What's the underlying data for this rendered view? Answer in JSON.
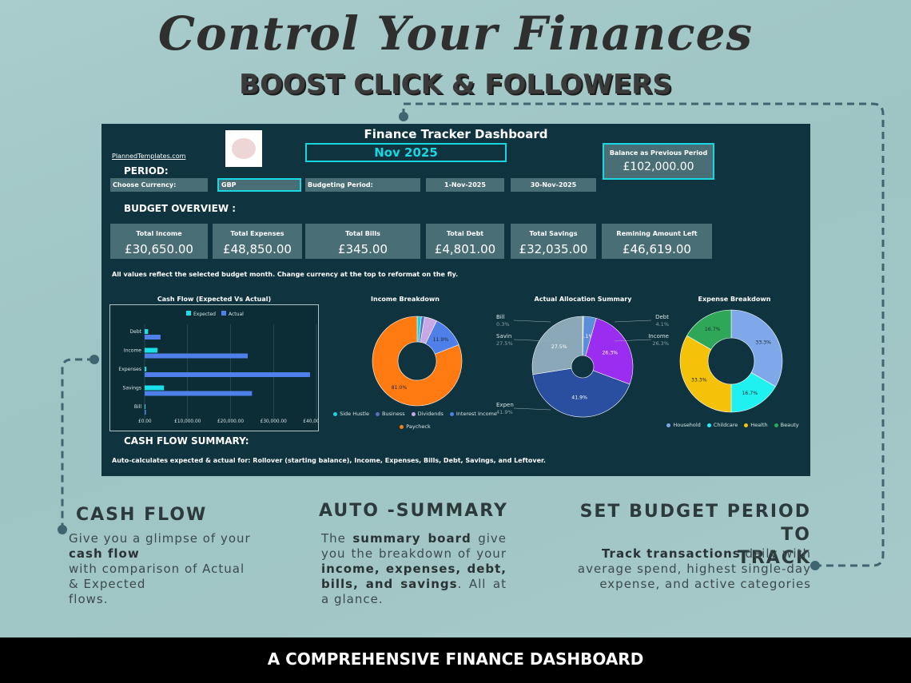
{
  "headline": "Control Your Finances",
  "subheadline": "BOOST CLICK & FOLLOWERS",
  "dashboard": {
    "title": "Finance Tracker Dashboard",
    "month": "Nov 2025",
    "site": "PlannedTemplates.com",
    "balance_label": "Balance as Previous Period",
    "balance_value": "£102,000.00",
    "period_heading": "PERIOD:",
    "currency_label": "Choose Currency:",
    "currency_value": "GBP",
    "budget_period_label": "Budgeting Period:",
    "start_date": "1-Nov-2025",
    "end_date": "30-Nov-2025",
    "overview_heading": "BUDGET OVERVIEW :",
    "cards": [
      {
        "label": "Total Income",
        "value": "£30,650.00"
      },
      {
        "label": "Total Expenses",
        "value": "£48,850.00"
      },
      {
        "label": "Total Bills",
        "value": "£345.00"
      },
      {
        "label": "Total Debt",
        "value": "£4,801.00"
      },
      {
        "label": "Total Savings",
        "value": "£32,035.00"
      },
      {
        "label": "Remining Amount Left",
        "value": "£46,619.00"
      }
    ],
    "note": "All values reflect the selected budget month. Change currency at the top to reformat on the fly.",
    "cashflow_summary_heading": "CASH FLOW SUMMARY:",
    "footer_note": "Auto-calculates expected & actual for: Rollover (starting balance), Income, Expenses, Bills, Debt, Savings, and Leftover."
  },
  "chart_data": [
    {
      "type": "bar",
      "orientation": "horizontal",
      "title": "Cash Flow (Expected Vs Actual)",
      "categories": [
        "Debt",
        "Income",
        "Expenses",
        "Savings",
        "Bill"
      ],
      "series": [
        {
          "name": "Expected",
          "values": [
            800,
            3000,
            400,
            4500,
            100
          ],
          "color": "#19e0e8"
        },
        {
          "name": "Actual",
          "values": [
            3700,
            24000,
            38500,
            25000,
            300
          ],
          "color": "#4f7fe8"
        }
      ],
      "x_ticks": [
        "£0.00",
        "£10,000.00",
        "£20,000.00",
        "£30,000.00",
        "£40,000.00"
      ],
      "xlim": [
        0,
        40000
      ],
      "legend": "top"
    },
    {
      "type": "pie",
      "donut": true,
      "title": "Income Breakdown",
      "labels": [
        "Side Hustle",
        "Business",
        "Dividends",
        "Interest Income",
        "Paycheck"
      ],
      "values": [
        1.5,
        1.2,
        4.5,
        11.9,
        81.0
      ],
      "colors": [
        "#19d6e0",
        "#5a6fc0",
        "#c9a8e8",
        "#4f7fe8",
        "#ff7a10"
      ],
      "data_labels": [
        "",
        "",
        "",
        "11.9%",
        "81.0%"
      ],
      "legend": "bottom"
    },
    {
      "type": "pie",
      "title": "Actual Allocation Summary",
      "labels": [
        "Bill",
        "Debt",
        "Income",
        "Expen",
        "Savin"
      ],
      "values": [
        0.3,
        4.1,
        26.3,
        41.9,
        27.5
      ],
      "colors": [
        "#b0b8e0",
        "#5b8ed8",
        "#9b2df0",
        "#2a4fa0",
        "#8aa8b8"
      ],
      "data_labels": [
        "0.3%",
        "4.1%",
        "26.3%",
        "41.9%",
        "27.5%"
      ]
    },
    {
      "type": "pie",
      "donut": true,
      "title": "Expense Breakdown",
      "labels": [
        "Household",
        "Childcare",
        "Health",
        "Beauty"
      ],
      "values": [
        33.3,
        16.7,
        33.3,
        16.7
      ],
      "colors": [
        "#7ea8ea",
        "#1ff0f0",
        "#f5c20a",
        "#2ea858"
      ],
      "data_labels": [
        "33.3%",
        "16.7%",
        "33.3%",
        "16.7%"
      ],
      "legend": "bottom"
    }
  ],
  "features": [
    {
      "title": "CASH FLOW",
      "text": "Give you a glimpse of your cash flow with comparison of Actual & Expected flows.",
      "bold": "cash flow"
    },
    {
      "title": "AUTO -SUMMARY",
      "text_parts": [
        "The ",
        "summary board",
        " give you the breakdown of your ",
        "income, expenses, debt, bills, and savings",
        ". All at a glance."
      ]
    },
    {
      "title_line1": "SET BUDGET PERIOD TO",
      "title_line2": "TRACK",
      "text_parts": [
        "Track transactions",
        " daily with average spend, highest single-day expense, and active categories"
      ]
    }
  ],
  "banner": "A COMPREHENSIVE FINANCE DASHBOARD"
}
